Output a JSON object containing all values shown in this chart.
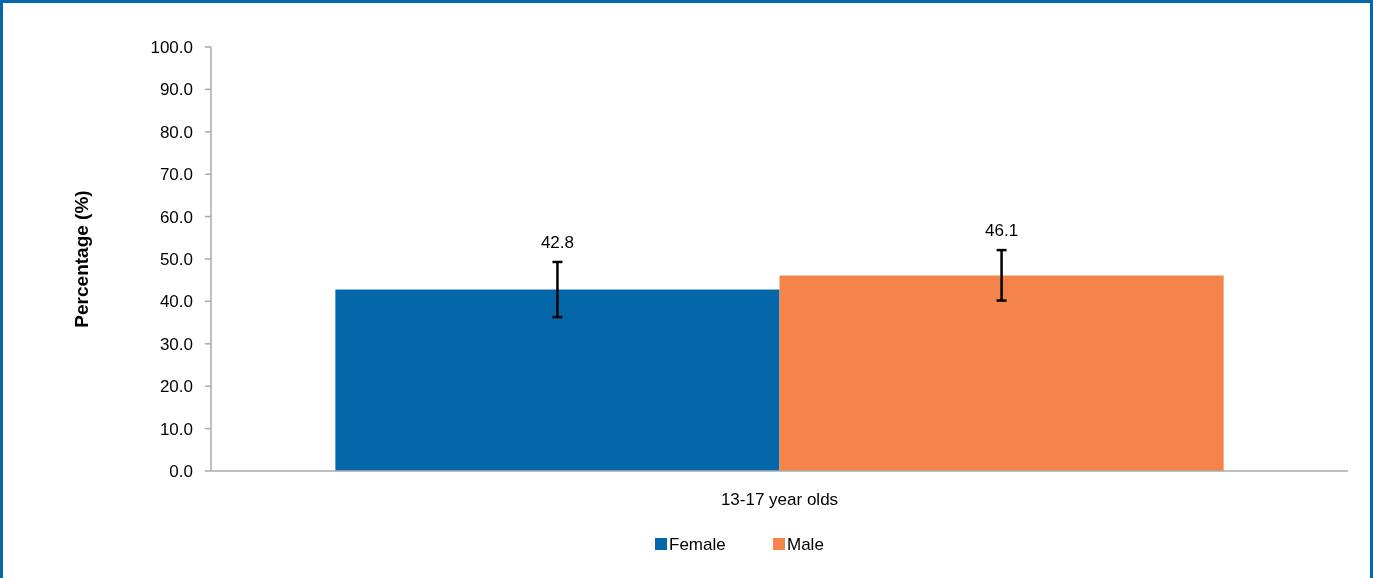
{
  "chart_data": {
    "type": "bar",
    "ylabel": "Percentage (%)",
    "categories": [
      "13-17 year olds"
    ],
    "series": [
      {
        "name": "Female",
        "color": "#0467aa",
        "values": [
          42.8
        ],
        "errors": [
          [
            36.3,
            49.3
          ]
        ]
      },
      {
        "name": "Male",
        "color": "#f48449",
        "values": [
          46.1
        ],
        "errors": [
          [
            40.2,
            52.1
          ]
        ]
      }
    ],
    "ylim": [
      0,
      100
    ],
    "yticks": [
      {
        "value": 0,
        "label": "0.0"
      },
      {
        "value": 10,
        "label": "10.0"
      },
      {
        "value": 20,
        "label": "20.0"
      },
      {
        "value": 30,
        "label": "30.0"
      },
      {
        "value": 40,
        "label": "40.0"
      },
      {
        "value": 50,
        "label": "50.0"
      },
      {
        "value": 60,
        "label": "60.0"
      },
      {
        "value": 70,
        "label": "70.0"
      },
      {
        "value": 80,
        "label": "80.0"
      },
      {
        "value": 90,
        "label": "90.0"
      },
      {
        "value": 100,
        "label": "100.0"
      }
    ],
    "data_labels": true,
    "legend": "bottom",
    "grid": false
  }
}
